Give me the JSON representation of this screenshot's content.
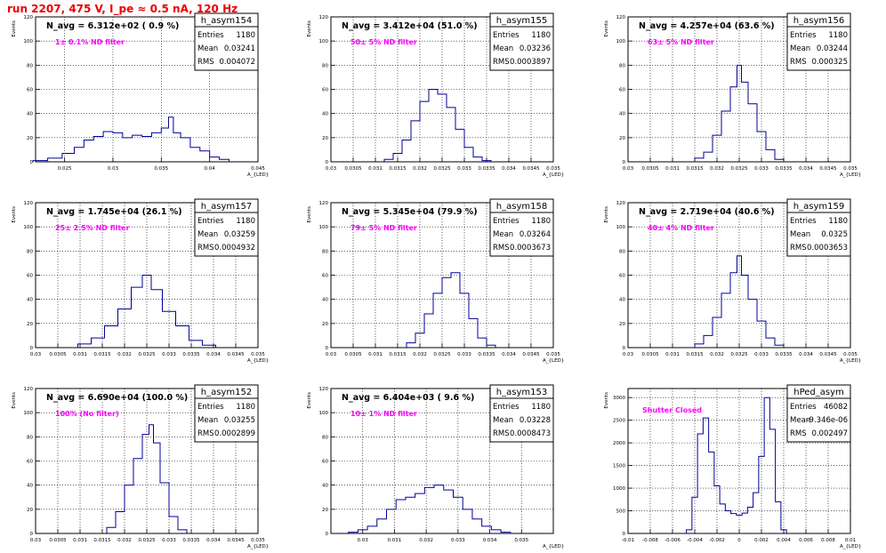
{
  "title": "run 2207,   475 V, I_pe ≈ 0.5 nA, 120 Hz",
  "stat_labels": {
    "entries": "Entries",
    "mean": "Mean",
    "rms": "RMS"
  },
  "colors": {
    "hist": "#000099",
    "annotation": "#ff00ff",
    "title": "#ee0000",
    "grid": "#000000"
  },
  "chart_data": [
    {
      "type": "histogram",
      "name": "h_asym154",
      "navg": "N_avg = 6.312e+02 ( 0.9 %)",
      "annotation": "1± 0.1% ND filter",
      "stats": {
        "entries": "1180",
        "mean": "0.03241",
        "rms": "0.004072"
      },
      "ylabel": "Events",
      "xlabel": "A_{LED}",
      "xlim": [
        0.022,
        0.045
      ],
      "ylim": [
        0,
        120
      ],
      "xticks": [
        0.025,
        0.03,
        0.035,
        0.04,
        0.045
      ],
      "xtick_labels": [
        "0.025",
        "0.03",
        "0.035",
        "0.04",
        "0.045"
      ],
      "yticks": [
        0,
        20,
        40,
        60,
        80,
        100,
        120
      ],
      "x": [
        0.0225,
        0.024,
        0.0255,
        0.0265,
        0.0275,
        0.0285,
        0.0295,
        0.0305,
        0.0315,
        0.0325,
        0.0335,
        0.0345,
        0.0355,
        0.036,
        0.0365,
        0.0375,
        0.0385,
        0.0395,
        0.0405,
        0.0415
      ],
      "values": [
        1,
        3,
        7,
        12,
        18,
        21,
        25,
        24,
        20,
        22,
        21,
        24,
        28,
        37,
        24,
        20,
        12,
        9,
        4,
        2
      ]
    },
    {
      "type": "histogram",
      "name": "h_asym155",
      "navg": "N_avg = 3.412e+04 (51.0 %)",
      "annotation": "50± 5% ND filter",
      "stats": {
        "entries": "1180",
        "mean": "0.03236",
        "rms": "0.0003897"
      },
      "ylabel": "Events",
      "xlabel": "A_{LED}",
      "xlim": [
        0.03,
        0.035
      ],
      "ylim": [
        0,
        120
      ],
      "xticks": [
        0.03,
        0.0305,
        0.031,
        0.0315,
        0.032,
        0.0325,
        0.033,
        0.0335,
        0.034,
        0.0345,
        0.035
      ],
      "xtick_labels": [
        "0.03",
        "0.0305",
        "0.031",
        "0.0315",
        "0.032",
        "0.0325",
        "0.033",
        "0.0335",
        "0.034",
        "0.0345",
        "0.035"
      ],
      "yticks": [
        0,
        20,
        40,
        60,
        80,
        100,
        120
      ],
      "x": [
        0.0313,
        0.0315,
        0.0317,
        0.0319,
        0.0321,
        0.0323,
        0.0325,
        0.0327,
        0.0329,
        0.0331,
        0.0333,
        0.0335
      ],
      "values": [
        2,
        7,
        18,
        34,
        50,
        60,
        56,
        45,
        27,
        12,
        4,
        1
      ]
    },
    {
      "type": "histogram",
      "name": "h_asym156",
      "navg": "N_avg = 4.257e+04 (63.6 %)",
      "annotation": "63± 5% ND filter",
      "stats": {
        "entries": "1180",
        "mean": "0.03244",
        "rms": "0.000325"
      },
      "ylabel": "Events",
      "xlabel": "A_{LED}",
      "xlim": [
        0.03,
        0.035
      ],
      "ylim": [
        0,
        120
      ],
      "xticks": [
        0.03,
        0.0305,
        0.031,
        0.0315,
        0.032,
        0.0325,
        0.033,
        0.0335,
        0.034,
        0.0345,
        0.035
      ],
      "xtick_labels": [
        "0.03",
        "0.0305",
        "0.031",
        "0.0315",
        "0.032",
        "0.0325",
        "0.033",
        "0.0335",
        "0.034",
        "0.0345",
        "0.035"
      ],
      "yticks": [
        0,
        20,
        40,
        60,
        80,
        100,
        120
      ],
      "x": [
        0.0316,
        0.0318,
        0.032,
        0.0322,
        0.0324,
        0.0325,
        0.0326,
        0.0328,
        0.033,
        0.0332,
        0.0334
      ],
      "values": [
        3,
        8,
        22,
        42,
        62,
        80,
        66,
        48,
        25,
        10,
        2
      ]
    },
    {
      "type": "histogram",
      "name": "h_asym157",
      "navg": "N_avg = 1.745e+04 (26.1 %)",
      "annotation": "25± 2.5% ND filter",
      "stats": {
        "entries": "1180",
        "mean": "0.03259",
        "rms": "0.0004932"
      },
      "ylabel": "Events",
      "xlabel": "A_{LED}",
      "xlim": [
        0.03,
        0.035
      ],
      "ylim": [
        0,
        120
      ],
      "xticks": [
        0.03,
        0.0305,
        0.031,
        0.0315,
        0.032,
        0.0325,
        0.033,
        0.0335,
        0.034,
        0.0345,
        0.035
      ],
      "xtick_labels": [
        "0.03",
        "0.0305",
        "0.031",
        "0.0315",
        "0.032",
        "0.0325",
        "0.033",
        "0.0335",
        "0.034",
        "0.0345",
        "0.035"
      ],
      "yticks": [
        0,
        20,
        40,
        60,
        80,
        100,
        120
      ],
      "x": [
        0.0311,
        0.0314,
        0.0317,
        0.032,
        0.0323,
        0.0325,
        0.0327,
        0.033,
        0.0333,
        0.0336,
        0.0339
      ],
      "values": [
        3,
        8,
        18,
        32,
        50,
        60,
        48,
        30,
        18,
        6,
        2
      ]
    },
    {
      "type": "histogram",
      "name": "h_asym158",
      "navg": "N_avg = 5.345e+04 (79.9 %)",
      "annotation": "79± 5% ND filter",
      "stats": {
        "entries": "1180",
        "mean": "0.03264",
        "rms": "0.0003673"
      },
      "ylabel": "Events",
      "xlabel": "A_{LED}",
      "xlim": [
        0.03,
        0.035
      ],
      "ylim": [
        0,
        120
      ],
      "xticks": [
        0.03,
        0.0305,
        0.031,
        0.0315,
        0.032,
        0.0325,
        0.033,
        0.0335,
        0.034,
        0.0345,
        0.035
      ],
      "xtick_labels": [
        "0.03",
        "0.0305",
        "0.031",
        "0.0315",
        "0.032",
        "0.0325",
        "0.033",
        "0.0335",
        "0.034",
        "0.0345",
        "0.035"
      ],
      "yticks": [
        0,
        20,
        40,
        60,
        80,
        100,
        120
      ],
      "x": [
        0.0318,
        0.032,
        0.0322,
        0.0324,
        0.0326,
        0.0328,
        0.033,
        0.0332,
        0.0334,
        0.0336
      ],
      "values": [
        4,
        12,
        28,
        45,
        58,
        62,
        45,
        24,
        8,
        2
      ]
    },
    {
      "type": "histogram",
      "name": "h_asym159",
      "navg": "N_avg = 2.719e+04 (40.6 %)",
      "annotation": "40± 4% ND filter",
      "stats": {
        "entries": "1180",
        "mean": "0.0325",
        "rms": "0.0003653"
      },
      "ylabel": "Events",
      "xlabel": "A_{LED}",
      "xlim": [
        0.03,
        0.035
      ],
      "ylim": [
        0,
        120
      ],
      "xticks": [
        0.03,
        0.0305,
        0.031,
        0.0315,
        0.032,
        0.0325,
        0.033,
        0.0335,
        0.034,
        0.0345,
        0.035
      ],
      "xtick_labels": [
        "0.03",
        "0.0305",
        "0.031",
        "0.0315",
        "0.032",
        "0.0325",
        "0.033",
        "0.0335",
        "0.034",
        "0.0345",
        "0.035"
      ],
      "yticks": [
        0,
        20,
        40,
        60,
        80,
        100,
        120
      ],
      "x": [
        0.0316,
        0.0318,
        0.032,
        0.0322,
        0.0324,
        0.0325,
        0.0326,
        0.0328,
        0.033,
        0.0332,
        0.0334
      ],
      "values": [
        3,
        10,
        25,
        45,
        62,
        76,
        60,
        40,
        22,
        8,
        2
      ]
    },
    {
      "type": "histogram",
      "name": "h_asym152",
      "navg": "N_avg = 6.690e+04 (100.0 %)",
      "annotation": "100% (No filter)",
      "stats": {
        "entries": "1180",
        "mean": "0.03255",
        "rms": "0.0002899"
      },
      "ylabel": "Events",
      "xlabel": "A_{LED}",
      "xlim": [
        0.03,
        0.035
      ],
      "ylim": [
        0,
        120
      ],
      "xticks": [
        0.03,
        0.0305,
        0.031,
        0.0315,
        0.032,
        0.0325,
        0.033,
        0.0335,
        0.034,
        0.0345,
        0.035
      ],
      "xtick_labels": [
        "0.03",
        "0.0305",
        "0.031",
        "0.0315",
        "0.032",
        "0.0325",
        "0.033",
        "0.0335",
        "0.034",
        "0.0345",
        "0.035"
      ],
      "yticks": [
        0,
        20,
        40,
        60,
        80,
        100,
        120
      ],
      "x": [
        0.0317,
        0.0319,
        0.0321,
        0.0323,
        0.0325,
        0.0326,
        0.0327,
        0.0329,
        0.0331,
        0.0333
      ],
      "values": [
        5,
        18,
        40,
        62,
        82,
        90,
        75,
        42,
        14,
        3
      ]
    },
    {
      "type": "histogram",
      "name": "h_asym153",
      "navg": "N_avg = 6.404e+03 ( 9.6 %)",
      "annotation": "10± 1% ND filter",
      "stats": {
        "entries": "1180",
        "mean": "0.03228",
        "rms": "0.0008473"
      },
      "ylabel": "Events",
      "xlabel": "A_{LED}",
      "xlim": [
        0.029,
        0.036
      ],
      "ylim": [
        0,
        120
      ],
      "xticks": [
        0.03,
        0.031,
        0.032,
        0.033,
        0.034,
        0.035
      ],
      "xtick_labels": [
        "0.03",
        "0.031",
        "0.032",
        "0.033",
        "0.034",
        "0.035"
      ],
      "yticks": [
        0,
        20,
        40,
        60,
        80,
        100,
        120
      ],
      "x": [
        0.0297,
        0.03,
        0.0303,
        0.0306,
        0.0309,
        0.0312,
        0.0315,
        0.0318,
        0.0321,
        0.0324,
        0.0327,
        0.033,
        0.0333,
        0.0336,
        0.0339,
        0.0342,
        0.0345
      ],
      "values": [
        1,
        3,
        6,
        12,
        20,
        28,
        30,
        33,
        38,
        40,
        36,
        30,
        20,
        12,
        6,
        3,
        1
      ]
    },
    {
      "type": "histogram",
      "name": "hPed_asym",
      "navg": "",
      "annotation": "Shutter Closed",
      "stats": {
        "entries": "46082",
        "mean": "-9.346e-06",
        "rms": "0.002497"
      },
      "ylabel": "Events",
      "xlabel": "A_{LED}",
      "xlim": [
        -0.01,
        0.01
      ],
      "ylim": [
        0,
        3200
      ],
      "xticks": [
        -0.01,
        -0.008,
        -0.006,
        -0.004,
        -0.002,
        0,
        0.002,
        0.004,
        0.006,
        0.008,
        0.01
      ],
      "xtick_labels": [
        "-0.01",
        "-0.008",
        "-0.006",
        "-0.004",
        "-0.002",
        "0",
        "0.002",
        "0.004",
        "0.006",
        "0.008",
        "0.01"
      ],
      "yticks": [
        0,
        500,
        1000,
        1500,
        2000,
        2500,
        3000
      ],
      "x": [
        -0.0045,
        -0.004,
        -0.0035,
        -0.003,
        -0.0025,
        -0.002,
        -0.0015,
        -0.001,
        -0.0005,
        0,
        0.0005,
        0.001,
        0.0015,
        0.002,
        0.0025,
        0.003,
        0.0035,
        0.004
      ],
      "values": [
        80,
        800,
        2200,
        2550,
        1800,
        1050,
        650,
        500,
        440,
        400,
        450,
        580,
        900,
        1700,
        3000,
        2300,
        700,
        80
      ]
    }
  ]
}
